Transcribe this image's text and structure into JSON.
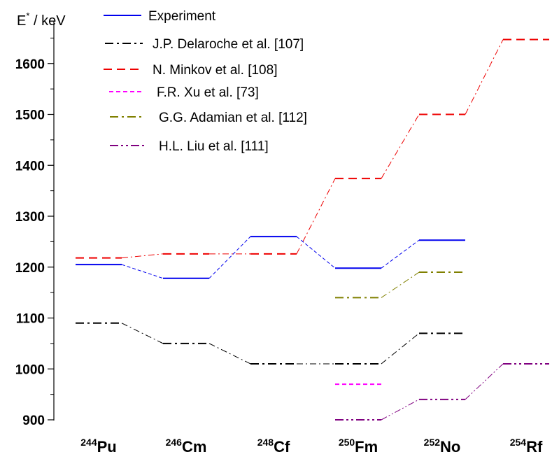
{
  "chart_data": {
    "type": "line",
    "ylabel": "E* / keV",
    "ylabel_main": "E",
    "ylabel_sup": "*",
    "ylabel_unit": " / keV",
    "ylim": [
      900,
      1660
    ],
    "yticks": [
      900,
      1000,
      1100,
      1200,
      1300,
      1400,
      1500,
      1600
    ],
    "categories": [
      {
        "mass": "244",
        "symbol": "Pu"
      },
      {
        "mass": "246",
        "symbol": "Cm"
      },
      {
        "mass": "248",
        "symbol": "Cf"
      },
      {
        "mass": "250",
        "symbol": "Fm"
      },
      {
        "mass": "252",
        "symbol": "No"
      },
      {
        "mass": "254",
        "symbol": "Rf"
      }
    ],
    "legend_placement": "top-center",
    "series": [
      {
        "name": "Experiment",
        "color": "#0000ee",
        "style": "solid",
        "values": [
          1205,
          1178,
          1260,
          1198,
          1253,
          null
        ]
      },
      {
        "name": "J.P. Delaroche et al. [107]",
        "color": "#000000",
        "style": "dashdot",
        "values": [
          1090,
          1050,
          1010,
          1010,
          1070,
          null
        ]
      },
      {
        "name": "N. Minkov et al. [108]",
        "color": "#ee0000",
        "style": "dash",
        "values": [
          1218,
          1226,
          1226,
          1374,
          1500,
          1647
        ]
      },
      {
        "name": "F.R. Xu et al. [73]",
        "color": "#ff00ff",
        "style": "shortdash",
        "values": [
          null,
          null,
          null,
          970,
          null,
          null
        ]
      },
      {
        "name": "G.G. Adamian et al. [112]",
        "color": "#808000",
        "style": "dashdot",
        "values": [
          null,
          null,
          null,
          1140,
          1190,
          null
        ]
      },
      {
        "name": "H.L. Liu et al. [111]",
        "color": "#800080",
        "style": "dashdotdot",
        "values": [
          null,
          null,
          null,
          900,
          940,
          1010
        ]
      }
    ]
  }
}
